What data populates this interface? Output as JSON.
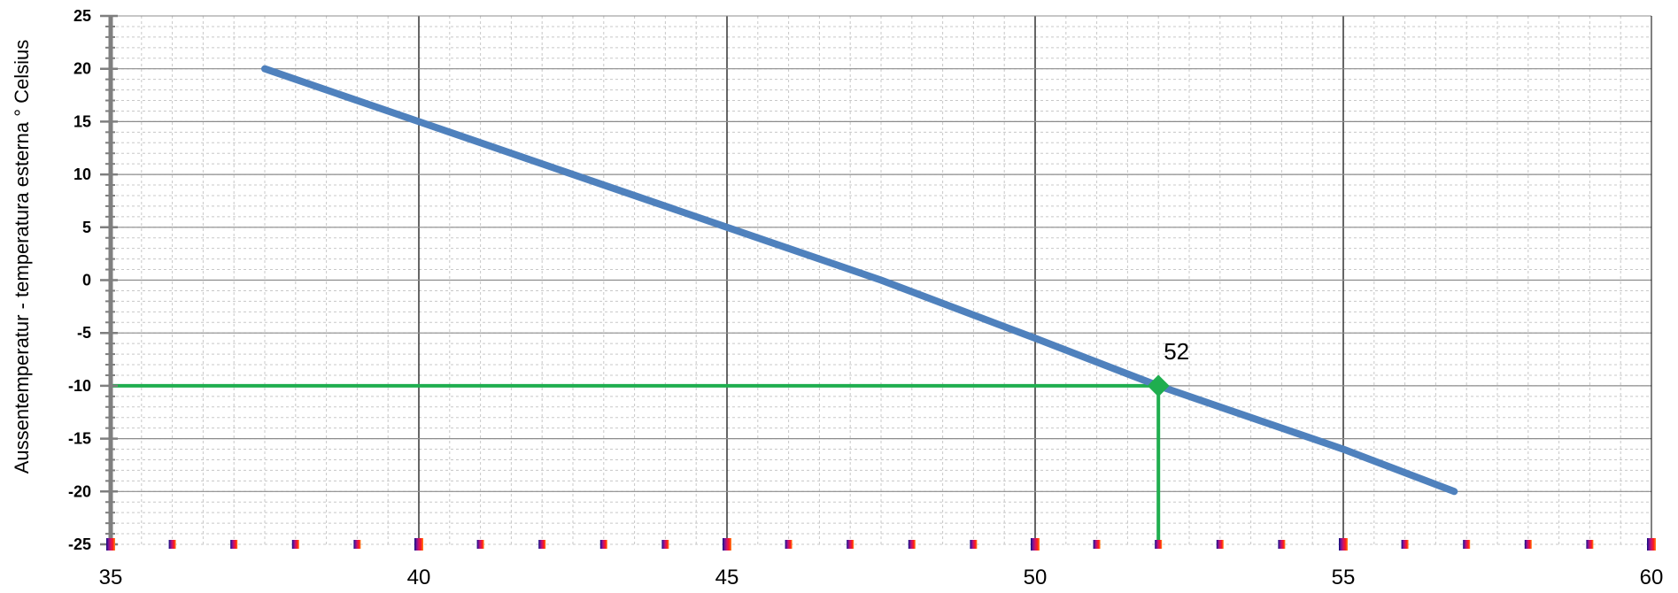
{
  "chart_data": {
    "type": "line",
    "ylabel": "Aussentemperatur - temperatura esterna ° Celsius",
    "xlabel": "",
    "xlim": [
      35,
      60
    ],
    "ylim": [
      -25,
      25
    ],
    "x_ticks": [
      "35",
      "40",
      "45",
      "50",
      "55",
      "60"
    ],
    "y_ticks": [
      "25",
      "20",
      "15",
      "10",
      "5",
      "0",
      "-5",
      "-10",
      "-15",
      "-20",
      "-25"
    ],
    "grid": true,
    "series": [
      {
        "x": [
          37.5,
          40,
          45,
          47.5,
          50,
          52,
          55,
          56.8
        ],
        "y": [
          20,
          15,
          5,
          0,
          -5.5,
          -10,
          -16,
          -20
        ],
        "color": "#4f81bd"
      }
    ],
    "marker": {
      "x": 52,
      "y": -10,
      "color": "#1fae4f"
    },
    "guide_color": "#1fae4f",
    "annotations": [
      {
        "text": "52",
        "x": 52,
        "y": -10
      }
    ],
    "x_gradient_colors": [
      "#0a0a7a",
      "#7a1499",
      "#d01466",
      "#ff1a1a",
      "#ff8c1a"
    ]
  }
}
